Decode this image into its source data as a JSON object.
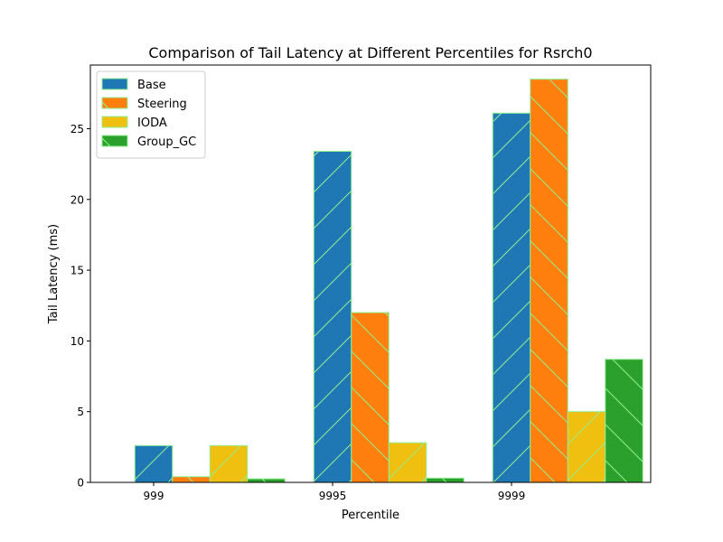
{
  "chart_data": {
    "type": "bar",
    "title": "Comparison of Tail Latency at Different Percentiles for Rsrch0",
    "xlabel": "Percentile",
    "ylabel": "Tail Latency (ms)",
    "categories": [
      "999",
      "9995",
      "9999"
    ],
    "ylim": [
      0,
      29.5
    ],
    "yticks": [
      0,
      5,
      10,
      15,
      20,
      25
    ],
    "grid": false,
    "legend_position": "top-left",
    "series": [
      {
        "name": "Base",
        "color": "#1f77b4",
        "hatch": "forward",
        "values": [
          2.6,
          23.4,
          26.1
        ]
      },
      {
        "name": "Steering",
        "color": "#ff7f0e",
        "hatch": "back",
        "values": [
          0.4,
          12.0,
          28.5
        ]
      },
      {
        "name": "IODA",
        "color": "#f0c010",
        "hatch": "forward",
        "values": [
          2.6,
          2.8,
          5.0
        ]
      },
      {
        "name": "Group_GC",
        "color": "#2ca02c",
        "hatch": "back",
        "values": [
          0.25,
          0.3,
          8.7
        ]
      }
    ],
    "bar_edge_color": "#90ee90",
    "hatch_color": "#90ee90"
  }
}
